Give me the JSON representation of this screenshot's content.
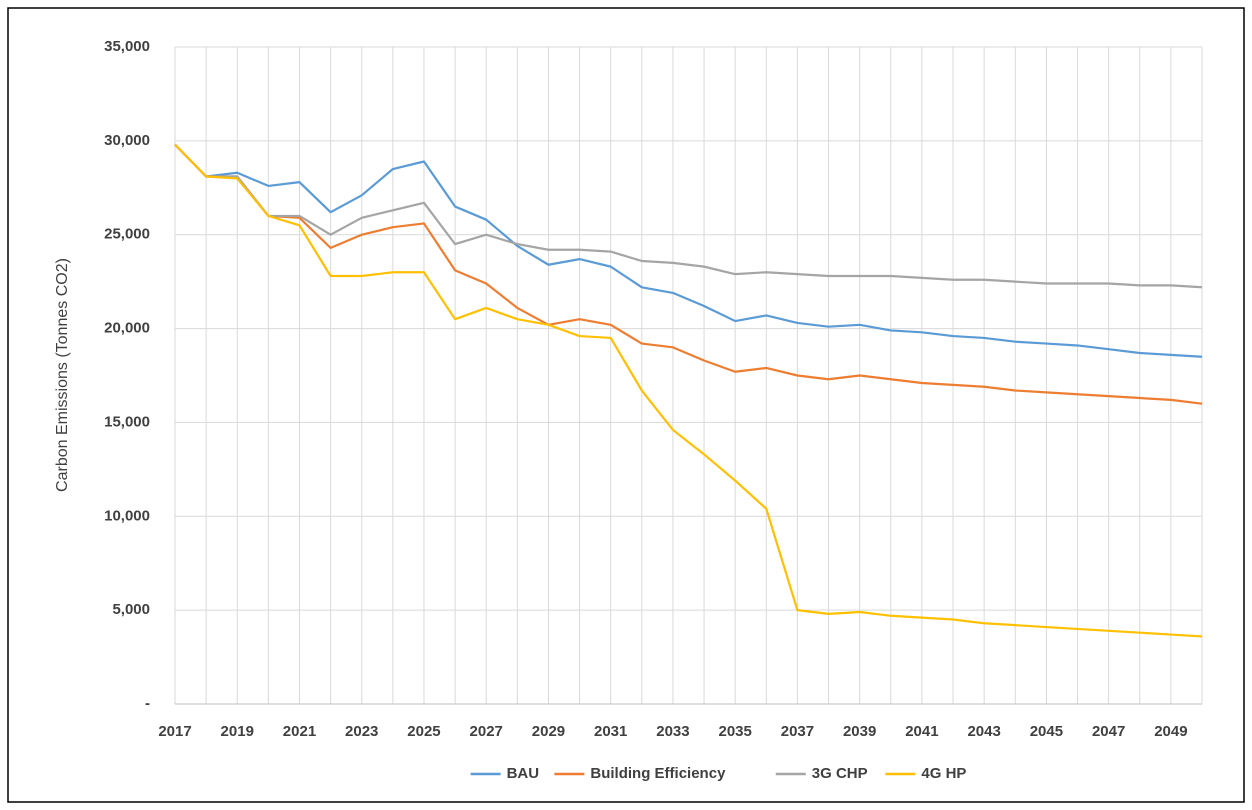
{
  "chart_data": {
    "type": "line",
    "y_label": "Carbon Emissions (Tonnes CO2)",
    "categories": [
      "2017",
      null,
      "2019",
      null,
      "2021",
      null,
      "2023",
      null,
      "2025",
      null,
      "2027",
      null,
      "2029",
      null,
      "2031",
      null,
      "2033",
      null,
      "2035",
      null,
      "2037",
      null,
      "2039",
      null,
      "2041",
      null,
      "2043",
      null,
      "2045",
      null,
      "2047",
      null,
      "2049",
      null
    ],
    "ylim": [
      0,
      35000
    ],
    "yticks": [
      {
        "value": 0,
        "label": "-"
      },
      {
        "value": 5000,
        "label": "5,000"
      },
      {
        "value": 10000,
        "label": "10,000"
      },
      {
        "value": 15000,
        "label": "15,000"
      },
      {
        "value": 20000,
        "label": "20,000"
      },
      {
        "value": 25000,
        "label": "25,000"
      },
      {
        "value": 30000,
        "label": "30,000"
      },
      {
        "value": 35000,
        "label": "35,000"
      }
    ],
    "grid": true,
    "legend": "bottom",
    "series": [
      {
        "name": "BAU",
        "color": "#5b9bd5",
        "values": [
          29800,
          28100,
          28300,
          27600,
          27800,
          26200,
          27100,
          28500,
          28900,
          26500,
          25800,
          24400,
          23400,
          23700,
          23300,
          22200,
          21900,
          21200,
          20400,
          20700,
          20300,
          20100,
          20200,
          19900,
          19800,
          19600,
          19500,
          19300,
          19200,
          19100,
          18900,
          18700,
          18600,
          18500
        ]
      },
      {
        "name": "Building Efficiency",
        "color": "#ed7d31",
        "values": [
          29800,
          28100,
          28100,
          26000,
          25900,
          24300,
          25000,
          25400,
          25600,
          23100,
          22400,
          21100,
          20200,
          20500,
          20200,
          19200,
          19000,
          18300,
          17700,
          17900,
          17500,
          17300,
          17500,
          17300,
          17100,
          17000,
          16900,
          16700,
          16600,
          16500,
          16400,
          16300,
          16200,
          16000
        ]
      },
      {
        "name": "3G CHP",
        "color": "#a5a5a5",
        "values": [
          29800,
          28100,
          28100,
          26000,
          26000,
          25000,
          25900,
          26300,
          26700,
          24500,
          25000,
          24500,
          24200,
          24200,
          24100,
          23600,
          23500,
          23300,
          22900,
          23000,
          22900,
          22800,
          22800,
          22800,
          22700,
          22600,
          22600,
          22500,
          22400,
          22400,
          22400,
          22300,
          22300,
          22200
        ]
      },
      {
        "name": "4G HP",
        "color": "#ffc000",
        "values": [
          29800,
          28100,
          28000,
          26000,
          25500,
          22800,
          22800,
          23000,
          23000,
          20500,
          21100,
          20500,
          20200,
          19600,
          19500,
          16700,
          14600,
          13300,
          11900,
          10400,
          5000,
          4800,
          4900,
          4700,
          4600,
          4500,
          4300,
          4200,
          4100,
          4000,
          3900,
          3800,
          3700,
          3600
        ]
      }
    ]
  }
}
